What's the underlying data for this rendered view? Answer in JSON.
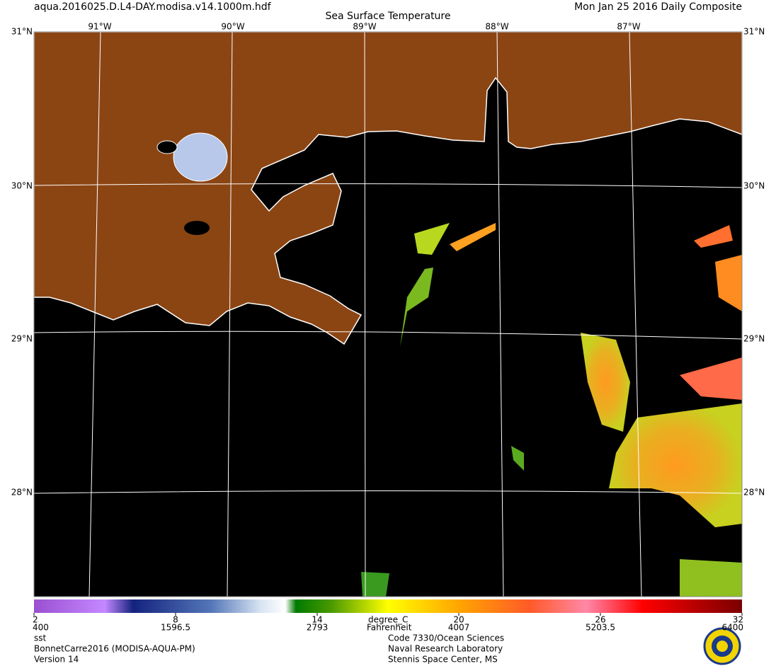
{
  "header": {
    "file": "aqua.2016025.D.L4-DAY.modisa.v14.1000m.hdf",
    "date": "Mon Jan 25 2016 Daily Composite",
    "title": "Sea Surface Temperature"
  },
  "map": {
    "longitudes": [
      "91°W",
      "90°W",
      "89°W",
      "88°W",
      "87°W"
    ],
    "latitudes": [
      "31°N",
      "30°N",
      "29°N",
      "28°N"
    ]
  },
  "colorbar": {
    "celsius_ticks": [
      2,
      8,
      14,
      20,
      26,
      32
    ],
    "fahrenheit_ticks": [
      400,
      1596.5,
      2793,
      4007,
      5203.5,
      6400
    ],
    "unit_c": "degree_C",
    "unit_f": "Fahrenheit"
  },
  "footer": {
    "left": [
      "sst",
      "BonnetCarre2016 (MODISA-AQUA-PM)",
      "Version 14"
    ],
    "right": [
      "Code 7330/Ocean Sciences",
      "Naval Research Laboratory",
      "Stennis Space Center, MS"
    ]
  }
}
